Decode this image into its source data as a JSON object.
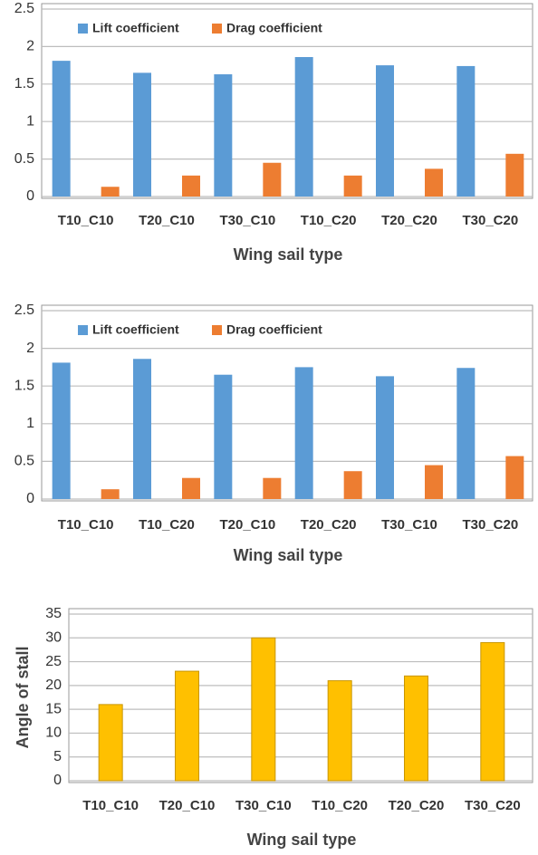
{
  "chart_data": [
    {
      "type": "bar",
      "x_label": "Wing sail type",
      "categories": [
        "T10_C10",
        "T20_C10",
        "T30_C10",
        "T10_C20",
        "T20_C20",
        "T30_C20"
      ],
      "series": [
        {
          "name": "Lift coefficient",
          "color": "#5b9bd5",
          "values": [
            1.81,
            1.65,
            1.63,
            1.86,
            1.75,
            1.74
          ]
        },
        {
          "name": "Drag coefficient",
          "color": "#ed7d31",
          "values": [
            0.13,
            0.28,
            0.45,
            0.28,
            0.37,
            0.57
          ]
        }
      ],
      "ylim": [
        0,
        2.5
      ],
      "yticks": [
        0,
        0.5,
        1,
        1.5,
        2,
        2.5
      ],
      "grid": true,
      "legend": "top"
    },
    {
      "type": "bar",
      "x_label": "Wing sail type",
      "categories": [
        "T10_C10",
        "T10_C20",
        "T20_C10",
        "T20_C20",
        "T30_C10",
        "T30_C20"
      ],
      "series": [
        {
          "name": "Lift coefficient",
          "color": "#5b9bd5",
          "values": [
            1.81,
            1.86,
            1.65,
            1.75,
            1.63,
            1.74
          ]
        },
        {
          "name": "Drag coefficient",
          "color": "#ed7d31",
          "values": [
            0.13,
            0.28,
            0.28,
            0.37,
            0.45,
            0.57
          ]
        }
      ],
      "ylim": [
        0,
        2.5
      ],
      "yticks": [
        0,
        0.5,
        1,
        1.5,
        2,
        2.5
      ],
      "grid": true,
      "legend": "top"
    },
    {
      "type": "bar",
      "x_label": "Wing sail type",
      "y_label": "Angle of stall",
      "categories": [
        "T10_C10",
        "T20_C10",
        "T30_C10",
        "T10_C20",
        "T20_C20",
        "T30_C20"
      ],
      "values": [
        16,
        23,
        30,
        21,
        22,
        29
      ],
      "color": "#ffc000",
      "ylim": [
        0,
        35
      ],
      "yticks": [
        0,
        5,
        10,
        15,
        20,
        25,
        30,
        35
      ],
      "grid": true
    }
  ]
}
